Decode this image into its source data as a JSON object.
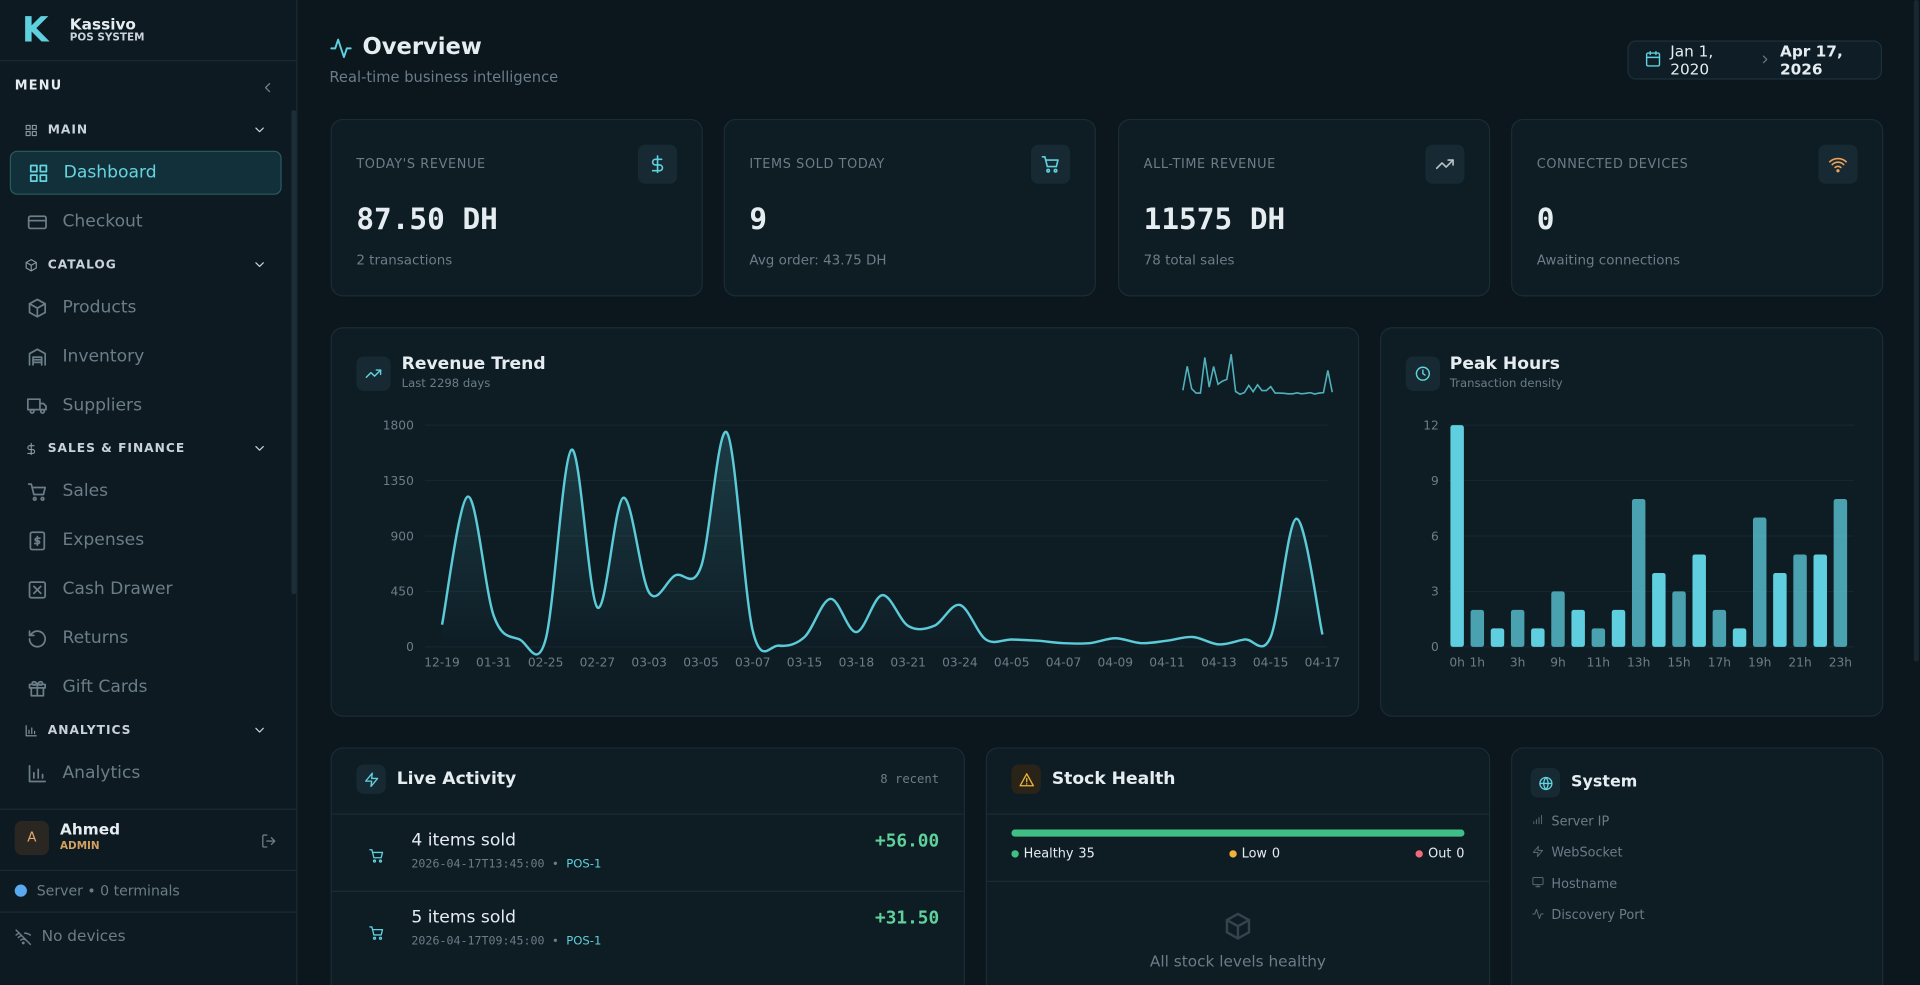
{
  "sidebar": {
    "brand": "Kassivo",
    "tagline": "POS SYSTEM",
    "logo": "K",
    "menu_label": "MENU",
    "sections": [
      {
        "label": "MAIN",
        "items": [
          "Dashboard",
          "Checkout"
        ]
      },
      {
        "label": "CATALOG",
        "items": [
          "Products",
          "Inventory",
          "Suppliers"
        ]
      },
      {
        "label": "SALES & FINANCE",
        "items": [
          "Sales",
          "Expenses",
          "Cash Drawer",
          "Returns",
          "Gift Cards"
        ]
      },
      {
        "label": "ANALYTICS",
        "items": [
          "Analytics"
        ]
      }
    ],
    "user": {
      "initial": "A",
      "name": "Ahmed",
      "role": "ADMIN"
    },
    "server_status": "Server • 0 terminals",
    "devices": "No devices"
  },
  "header": {
    "title": "Overview",
    "subtitle": "Real-time business intelligence",
    "date_from": "Jan 1, 2020",
    "date_to": "Apr 17, 2026"
  },
  "stats": [
    {
      "label": "TODAY'S REVENUE",
      "value": "87.50 DH",
      "note": "2 transactions"
    },
    {
      "label": "ITEMS SOLD TODAY",
      "value": "9",
      "note": "Avg order: 43.75 DH"
    },
    {
      "label": "ALL-TIME REVENUE",
      "value": "11575 DH",
      "note": "78 total sales"
    },
    {
      "label": "CONNECTED DEVICES",
      "value": "0",
      "note": "Awaiting connections"
    }
  ],
  "chart_data": [
    {
      "type": "line",
      "title": "Revenue Trend",
      "subtitle": "Last 2298 days",
      "categories": [
        "12-19",
        null,
        "01-31",
        null,
        "02-25",
        null,
        "02-27",
        null,
        "03-03",
        null,
        "03-05",
        null,
        "03-07",
        null,
        "03-15",
        null,
        "03-18",
        null,
        "03-21",
        null,
        "03-24",
        null,
        "04-05",
        null,
        "04-07",
        null,
        "04-09",
        null,
        "04-11",
        null,
        "04-13",
        null,
        "04-15",
        null,
        "04-17"
      ],
      "values": [
        180,
        1220,
        250,
        60,
        60,
        1600,
        320,
        1210,
        440,
        580,
        650,
        1740,
        130,
        10,
        80,
        390,
        120,
        420,
        170,
        170,
        340,
        60,
        60,
        50,
        30,
        30,
        70,
        30,
        50,
        80,
        20,
        60,
        80,
        1040,
        100
      ],
      "color": "#5ccbd8",
      "ylim": [
        0,
        1800
      ],
      "yticks": [
        0,
        450,
        900,
        1350,
        1800
      ],
      "grid": true
    },
    {
      "type": "bar",
      "title": "Peak Hours",
      "subtitle": "Transaction density",
      "categories": [
        "0h",
        "1h",
        null,
        "3h",
        null,
        "9h",
        null,
        "11h",
        null,
        "13h",
        null,
        "15h",
        null,
        "17h",
        null,
        "19h",
        null,
        "21h",
        null,
        "23h"
      ],
      "values": [
        12,
        2,
        1,
        2,
        1,
        3,
        2,
        1,
        2,
        8,
        4,
        3,
        5,
        2,
        1,
        7,
        4,
        5,
        5,
        8
      ],
      "color": "#5fcfdf",
      "ylim": [
        0,
        12
      ],
      "yticks": [
        0,
        3,
        6,
        9,
        12
      ],
      "grid": true
    }
  ],
  "live_activity": {
    "title": "Live Activity",
    "count": "8 recent",
    "items": [
      {
        "title": "4 items sold",
        "time": "2026-04-17T13:45:00",
        "separator": "•",
        "terminal": "POS-1",
        "amount": "+56.00"
      },
      {
        "title": "5 items sold",
        "time": "2026-04-17T09:45:00",
        "separator": "•",
        "terminal": "POS-1",
        "amount": "+31.50"
      }
    ]
  },
  "stock_health": {
    "title": "Stock Health",
    "levels": [
      {
        "label": "Healthy",
        "count": 35,
        "color": "#3fbf86"
      },
      {
        "label": "Low",
        "count": 0,
        "color": "#f0b43c"
      },
      {
        "label": "Out",
        "count": 0,
        "color": "#f06a7a"
      }
    ],
    "message": "All stock levels healthy"
  },
  "system": {
    "title": "System",
    "rows": [
      "Server IP",
      "WebSocket",
      "Hostname",
      "Discovery Port"
    ]
  }
}
